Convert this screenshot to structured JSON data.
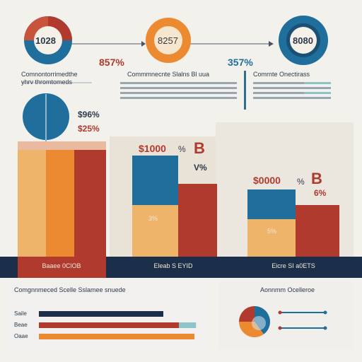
{
  "colors": {
    "blue": "#1f6e9c",
    "orange": "#ec8a31",
    "red": "#b03a2e",
    "navy": "#1b2f4a",
    "peach": "#eeb46a",
    "teal": "#8ec3c7"
  },
  "header": {
    "ring1": "1028",
    "ring2": "8257",
    "ring3": "8080",
    "pct1": "857%",
    "pct2": "357%",
    "col1": "Comnontorrimedthe\nyhrv thromtomeds",
    "col2": "Commmnecnte Slalns Bl uua",
    "col3": "Comrnte Onectirass"
  },
  "mid": {
    "lbl1": "$96%",
    "lbl2": "$25%",
    "g2_val": "$1000",
    "g2_sep": "%",
    "g2_b": "B",
    "g2_pct": "V%",
    "g3_val": "$0000",
    "g3_sep": "%",
    "g3_b": "B",
    "g3_pct": "6%",
    "g2_inner": "3%",
    "g3_inner": "5%"
  },
  "chart_data": [
    {
      "type": "bar",
      "categories": [
        "Baaee 0ClOB",
        "Eleab S EYID",
        "Eicre SI a0ETS"
      ],
      "series": [
        {
          "values": [
            100,
            60,
            44
          ]
        },
        {
          "values": [
            100,
            0,
            0
          ]
        },
        {
          "values": [
            100,
            53,
            32
          ]
        }
      ]
    },
    {
      "type": "bar",
      "orientation": "horizontal",
      "title": "Comgnnmeced Scelle Sslamee snuede",
      "categories": [
        "Saile",
        "Beae",
        "Oaae"
      ],
      "values": [
        80,
        90,
        100
      ],
      "secondary_values": [
        0,
        11,
        0
      ]
    },
    {
      "type": "pie",
      "title": "Aonnmm Ocelleroe",
      "values": [
        40,
        35,
        25
      ]
    }
  ],
  "bottom": {
    "left_title": "Comgnnmeced Scelle Sslamee snuede",
    "right_title": "Aonnmm Ocelleroe"
  }
}
